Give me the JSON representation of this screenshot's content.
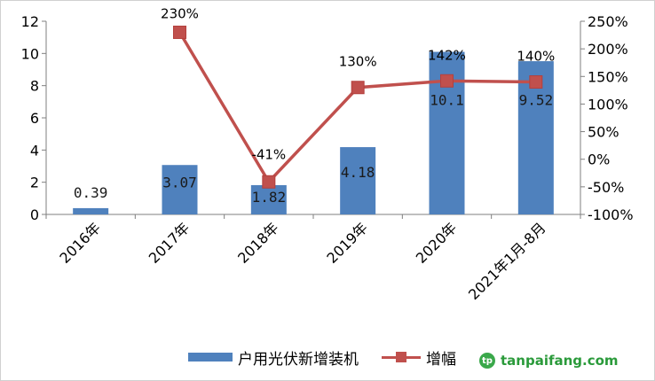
{
  "chart_data": {
    "type": "bar",
    "categories": [
      "2016年",
      "2017年",
      "2018年",
      "2019年",
      "2020年",
      "2021年1月-8月"
    ],
    "series": [
      {
        "name": "户用光伏新增装机",
        "type": "bar",
        "axis": "left",
        "values": [
          0.39,
          3.07,
          1.82,
          4.18,
          10.1,
          9.52
        ],
        "labels": [
          "0.39",
          "3.07",
          "1.82",
          "4.18",
          "10.1",
          "9.52"
        ],
        "color": "#4f81bd"
      },
      {
        "name": "增幅",
        "type": "line",
        "axis": "right",
        "values": [
          null,
          230,
          -41,
          130,
          142,
          140
        ],
        "labels": [
          "",
          "230%",
          "-41%",
          "130%",
          "142%",
          "140%"
        ],
        "color": "#c0504d",
        "marker": "square"
      }
    ],
    "ylim_left": [
      0,
      12
    ],
    "yticks_left": [
      0,
      2,
      4,
      6,
      8,
      10,
      12
    ],
    "ytick_labels_left": [
      "0",
      "2",
      "4",
      "6",
      "8",
      "10",
      "12"
    ],
    "ylim_right": [
      -100,
      250
    ],
    "yticks_right": [
      -100,
      -50,
      0,
      50,
      100,
      150,
      200,
      250
    ],
    "ytick_labels_right": [
      "-100%",
      "-50%",
      "0%",
      "50%",
      "100%",
      "150%",
      "200%",
      "250%"
    ],
    "grid": false,
    "legend_position": "bottom"
  },
  "legend": {
    "bar_label": "户用光伏新增装机",
    "line_label": "增幅"
  },
  "watermark": {
    "text": "tanpaifang.com"
  }
}
